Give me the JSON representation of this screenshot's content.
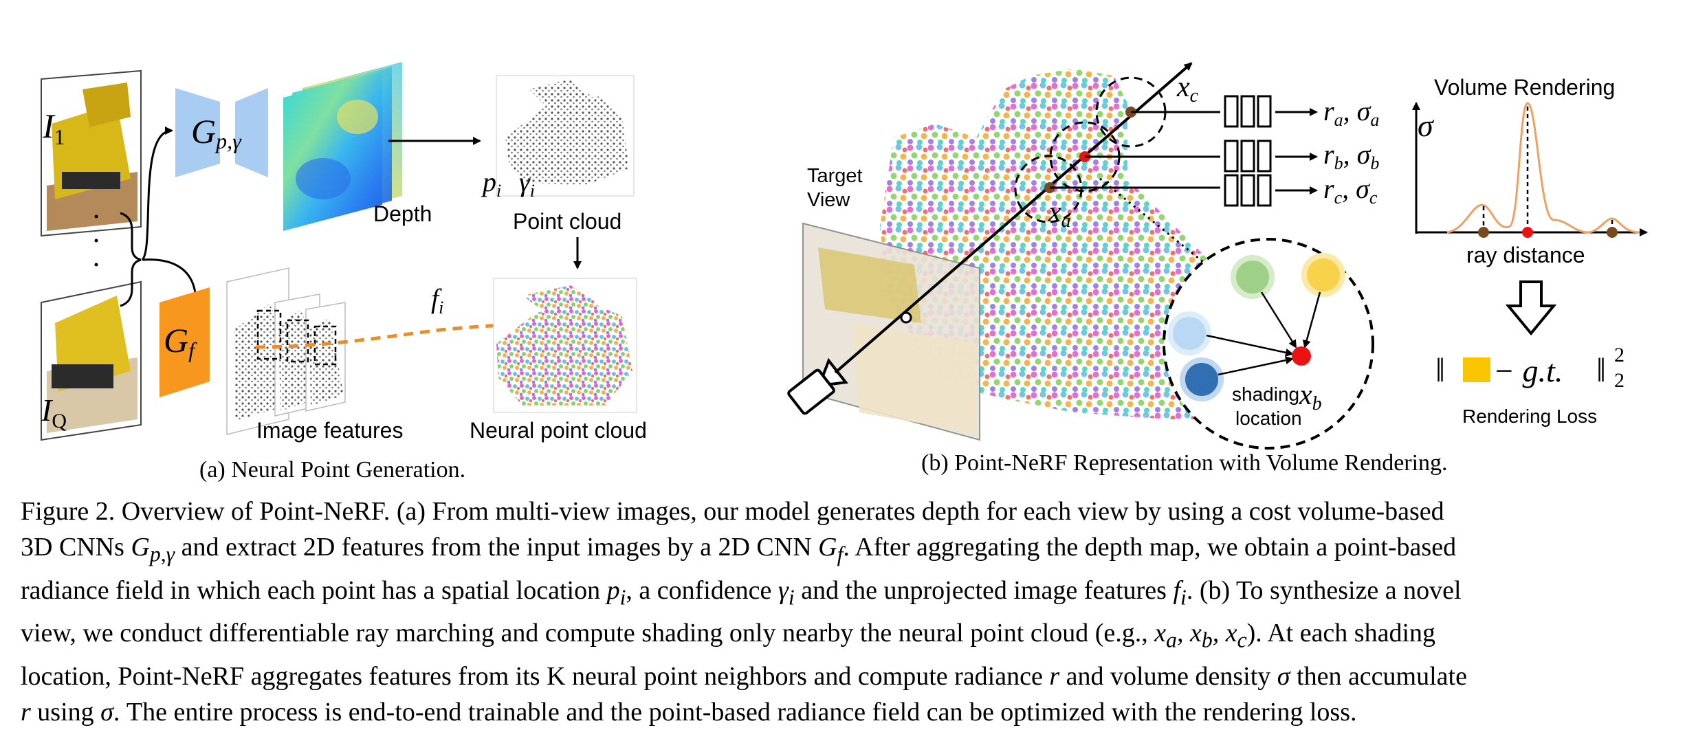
{
  "panel_a": {
    "label_i1": "I",
    "label_i1_sub": "1",
    "label_iq": "I",
    "label_iq_sub": "Q",
    "encoder_depth": "G",
    "encoder_depth_sub": "p,γ",
    "encoder_feat": "G",
    "encoder_feat_sub": "f",
    "depth_label": "Depth",
    "point_cloud_label": "Point cloud",
    "pi_label": "p",
    "pi_sub": "i",
    "gamma_label": "γ",
    "gamma_sub": "i",
    "fi_label": "f",
    "fi_sub": "i",
    "image_features_label": "Image features",
    "neural_point_cloud_label": "Neural point cloud",
    "subcaption": "(a) Neural Point Generation."
  },
  "panel_b": {
    "target_view_line1": "Target",
    "target_view_line2": "View",
    "xa": "x",
    "xa_sub": "a",
    "xb": "x",
    "xb_sub": "b",
    "xc": "x",
    "xc_sub": "c",
    "out_a": "r",
    "out_a_sub": "a",
    "sig_a_sub": "a",
    "out_b": "r",
    "out_b_sub": "b",
    "sig_b_sub": "b",
    "out_c": "r",
    "out_c_sub": "c",
    "sig_c_sub": "c",
    "sigma": "σ",
    "volume_rendering_label": "Volume Rendering",
    "ray_distance_label": "ray distance",
    "shading_line1": "shading",
    "shading_line2": "location",
    "loss_text": "− g.t.",
    "loss_norm_sub": "2",
    "loss_norm_sup": "2",
    "rendering_loss_label": "Rendering Loss",
    "subcaption": "(b) Point-NeRF Representation with Volume Rendering."
  },
  "caption": {
    "line1": "Figure 2. Overview of Point-NeRF. (a) From multi-view images, our model generates depth for each view by using a cost volume-based",
    "line2a": "3D CNNs ",
    "line2b": " and extract 2D features from the input images by a 2D CNN ",
    "line2c": ". After aggregating the depth map, we obtain a point-based",
    "line3a": "radiance field in which each point has a spatial location ",
    "line3b": ", a confidence ",
    "line3c": " and the unprojected image features ",
    "line3d": ". (b) To synthesize a novel",
    "line4a": "view, we conduct differentiable ray marching and compute shading only nearby the neural point cloud (e.g., ",
    "line4b": "). At each shading",
    "line5a": "location, Point-NeRF aggregates features from its K neural point neighbors and compute radiance ",
    "line5b": " and volume density ",
    "line5c": " then accumulate",
    "line6a": "",
    "line6b": " using ",
    "line6c": ". The entire process is end-to-end trainable and the point-based radiance field can be optimized with the rendering loss.",
    "m_gpg": "G",
    "m_gpg_sub": "p,γ",
    "m_gf": "G",
    "m_gf_sub": "f",
    "m_pi": "p",
    "m_pi_sub": "i",
    "m_gi": "γ",
    "m_gi_sub": "i",
    "m_fi": "f",
    "m_fi_sub": "i",
    "m_xs": "x",
    "m_xa_sub": "a",
    "m_xb_sub": "b",
    "m_xc_sub": "c",
    "m_comma": ", ",
    "m_r": "r",
    "m_sigma": "σ"
  },
  "colors": {
    "encoder_blue": "#a9cdf2",
    "encoder_orange": "#f7971d",
    "arrow_orange": "#f08a24",
    "sample_brown": "#7a4a1e",
    "sample_red": "#ee1111",
    "curve_orange": "#f0a060",
    "loss_yellow": "#f9c400",
    "neighbor_green": "#9fd08a",
    "neighbor_yellow": "#f8d24a",
    "neighbor_lightblue": "#b8d8f4",
    "neighbor_darkblue": "#2f6fb2"
  }
}
